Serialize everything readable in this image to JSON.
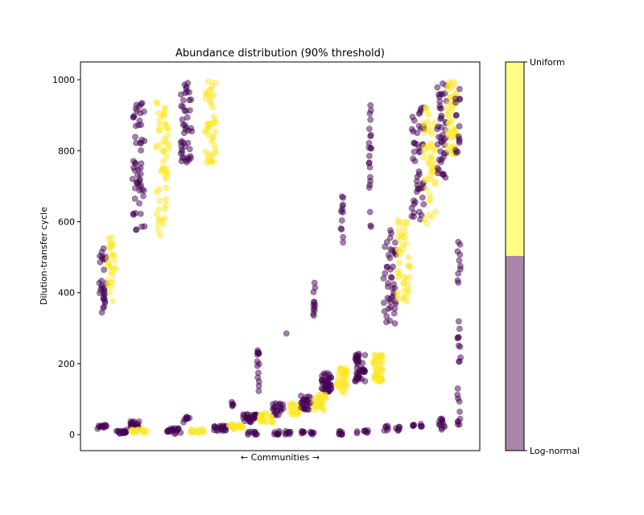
{
  "chart_data": {
    "type": "scatter",
    "title": "Abundance distribution (90% threshold)",
    "xlabel": "← Communities →",
    "ylabel": "Dilution-transfer cycle",
    "xlim": [
      0,
      100
    ],
    "ylim": [
      -45,
      1050
    ],
    "yticks": [
      0,
      200,
      400,
      600,
      800,
      1000
    ],
    "grid": false,
    "colors": {
      "log_normal": "#440154",
      "uniform": "#fde725"
    },
    "colorbar": {
      "labels": {
        "top": "Uniform",
        "bottom": "Log-normal"
      },
      "fill_colors": {
        "top": "#fefe84",
        "bottom": "#a786a8"
      }
    },
    "clusters": [
      {
        "cls": "log_normal",
        "x": 5.5,
        "y0": 340,
        "y1": 525,
        "n": 30,
        "spread": 1.0
      },
      {
        "cls": "uniform",
        "x": 7.8,
        "y0": 375,
        "y1": 565,
        "n": 28,
        "spread": 1.0
      },
      {
        "cls": "log_normal",
        "x": 14.5,
        "y0": 575,
        "y1": 935,
        "n": 55,
        "spread": 1.6
      },
      {
        "cls": "uniform",
        "x": 20.5,
        "y0": 560,
        "y1": 940,
        "n": 55,
        "spread": 1.6
      },
      {
        "cls": "log_normal",
        "x": 26.5,
        "y0": 760,
        "y1": 995,
        "n": 45,
        "spread": 1.4
      },
      {
        "cls": "uniform",
        "x": 32.5,
        "y0": 765,
        "y1": 1000,
        "n": 45,
        "spread": 1.4
      },
      {
        "cls": "log_normal",
        "x": 38.0,
        "y0": 80,
        "y1": 95,
        "n": 5,
        "spread": 0.3
      },
      {
        "cls": "log_normal",
        "x": 44.5,
        "y0": 120,
        "y1": 250,
        "n": 14,
        "spread": 0.3
      },
      {
        "cls": "log_normal",
        "x": 51.5,
        "y0": 280,
        "y1": 285,
        "n": 1,
        "spread": 0.1
      },
      {
        "cls": "log_normal",
        "x": 58.5,
        "y0": 320,
        "y1": 450,
        "n": 12,
        "spread": 0.3
      },
      {
        "cls": "log_normal",
        "x": 65.5,
        "y0": 540,
        "y1": 672,
        "n": 12,
        "spread": 0.3
      },
      {
        "cls": "log_normal",
        "x": 72.5,
        "y0": 565,
        "y1": 945,
        "n": 22,
        "spread": 0.3
      },
      {
        "cls": "log_normal",
        "x": 77.5,
        "y0": 310,
        "y1": 585,
        "n": 45,
        "spread": 1.6
      },
      {
        "cls": "uniform",
        "x": 81.0,
        "y0": 375,
        "y1": 625,
        "n": 45,
        "spread": 1.6
      },
      {
        "cls": "log_normal",
        "x": 84.5,
        "y0": 600,
        "y1": 935,
        "n": 50,
        "spread": 1.6
      },
      {
        "cls": "uniform",
        "x": 87.5,
        "y0": 595,
        "y1": 930,
        "n": 50,
        "spread": 1.6
      },
      {
        "cls": "log_normal",
        "x": 90.5,
        "y0": 710,
        "y1": 1000,
        "n": 45,
        "spread": 1.2
      },
      {
        "cls": "uniform",
        "x": 93.0,
        "y0": 790,
        "y1": 1000,
        "n": 50,
        "spread": 1.2
      },
      {
        "cls": "log_normal",
        "x": 94.5,
        "y0": 790,
        "y1": 990,
        "n": 15,
        "spread": 0.6
      },
      {
        "cls": "log_normal",
        "x": 94.8,
        "y0": 20,
        "y1": 545,
        "n": 30,
        "spread": 0.4
      },
      {
        "cls": "log_normal",
        "x": 61.5,
        "y0": 120,
        "y1": 175,
        "n": 40,
        "spread": 1.3
      },
      {
        "cls": "uniform",
        "x": 65.5,
        "y0": 115,
        "y1": 195,
        "n": 40,
        "spread": 1.3
      },
      {
        "cls": "log_normal",
        "x": 70.0,
        "y0": 150,
        "y1": 235,
        "n": 45,
        "spread": 1.3
      },
      {
        "cls": "uniform",
        "x": 74.5,
        "y0": 150,
        "y1": 225,
        "n": 45,
        "spread": 1.3
      },
      {
        "cls": "log_normal",
        "x": 49.5,
        "y0": 55,
        "y1": 90,
        "n": 20,
        "spread": 1.4
      },
      {
        "cls": "uniform",
        "x": 53.5,
        "y0": 55,
        "y1": 90,
        "n": 20,
        "spread": 1.4
      },
      {
        "cls": "log_normal",
        "x": 56.5,
        "y0": 70,
        "y1": 110,
        "n": 25,
        "spread": 1.4
      },
      {
        "cls": "uniform",
        "x": 60.0,
        "y0": 65,
        "y1": 115,
        "n": 30,
        "spread": 1.5
      },
      {
        "cls": "log_normal",
        "x": 42.5,
        "y0": 35,
        "y1": 60,
        "n": 30,
        "spread": 1.8
      },
      {
        "cls": "uniform",
        "x": 46.5,
        "y0": 30,
        "y1": 60,
        "n": 25,
        "spread": 1.6
      },
      {
        "cls": "log_normal",
        "x": 5.5,
        "y0": 15,
        "y1": 28,
        "n": 12,
        "spread": 1.2
      },
      {
        "cls": "log_normal",
        "x": 10.5,
        "y0": 2,
        "y1": 15,
        "n": 16,
        "spread": 1.5
      },
      {
        "cls": "log_normal",
        "x": 13.5,
        "y0": 20,
        "y1": 40,
        "n": 18,
        "spread": 1.2
      },
      {
        "cls": "uniform",
        "x": 14.5,
        "y0": 5,
        "y1": 15,
        "n": 18,
        "spread": 2.0
      },
      {
        "cls": "log_normal",
        "x": 23.5,
        "y0": 2,
        "y1": 18,
        "n": 20,
        "spread": 1.8
      },
      {
        "cls": "log_normal",
        "x": 26.5,
        "y0": 35,
        "y1": 50,
        "n": 8,
        "spread": 0.8
      },
      {
        "cls": "uniform",
        "x": 29.5,
        "y0": 5,
        "y1": 15,
        "n": 15,
        "spread": 2.0
      },
      {
        "cls": "log_normal",
        "x": 35.0,
        "y0": 10,
        "y1": 25,
        "n": 20,
        "spread": 1.8
      },
      {
        "cls": "uniform",
        "x": 39.0,
        "y0": 15,
        "y1": 30,
        "n": 20,
        "spread": 1.8
      },
      {
        "cls": "log_normal",
        "x": 43.0,
        "y0": 0,
        "y1": 10,
        "n": 10,
        "spread": 1.2
      },
      {
        "cls": "log_normal",
        "x": 49.0,
        "y0": 0,
        "y1": 10,
        "n": 8,
        "spread": 0.8
      },
      {
        "cls": "log_normal",
        "x": 52.0,
        "y0": 0,
        "y1": 10,
        "n": 8,
        "spread": 0.8
      },
      {
        "cls": "log_normal",
        "x": 55.5,
        "y0": 0,
        "y1": 10,
        "n": 6,
        "spread": 0.5
      },
      {
        "cls": "log_normal",
        "x": 58.0,
        "y0": 0,
        "y1": 10,
        "n": 6,
        "spread": 0.5
      },
      {
        "cls": "log_normal",
        "x": 65.0,
        "y0": 0,
        "y1": 12,
        "n": 8,
        "spread": 0.5
      },
      {
        "cls": "log_normal",
        "x": 69.5,
        "y0": 3,
        "y1": 10,
        "n": 2,
        "spread": 0.3
      },
      {
        "cls": "log_normal",
        "x": 71.5,
        "y0": 3,
        "y1": 12,
        "n": 6,
        "spread": 0.5
      },
      {
        "cls": "log_normal",
        "x": 76.5,
        "y0": 10,
        "y1": 25,
        "n": 6,
        "spread": 0.6
      },
      {
        "cls": "log_normal",
        "x": 79.5,
        "y0": 10,
        "y1": 25,
        "n": 6,
        "spread": 0.6
      },
      {
        "cls": "log_normal",
        "x": 83.5,
        "y0": 15,
        "y1": 28,
        "n": 4,
        "spread": 0.4
      },
      {
        "cls": "log_normal",
        "x": 85.5,
        "y0": 20,
        "y1": 30,
        "n": 4,
        "spread": 0.4
      },
      {
        "cls": "log_normal",
        "x": 90.5,
        "y0": 10,
        "y1": 45,
        "n": 12,
        "spread": 0.8
      }
    ]
  }
}
